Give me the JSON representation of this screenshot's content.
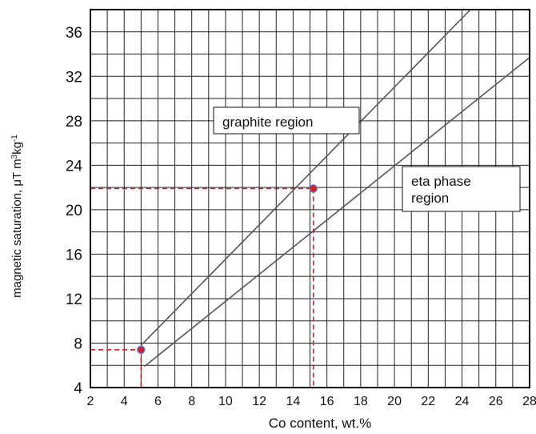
{
  "chart_data": {
    "type": "line",
    "xlabel": "Co content, wt.%",
    "ylabel_main": "magnetic saturation, μT m",
    "ylabel_sup1": "3",
    "ylabel_mid": "kg",
    "ylabel_sup2": "-1",
    "xlim": [
      2,
      28
    ],
    "ylim": [
      4,
      38
    ],
    "x_ticks": [
      "2",
      "4",
      "6",
      "8",
      "10",
      "12",
      "14",
      "16",
      "18",
      "20",
      "22",
      "24",
      "26",
      "28"
    ],
    "y_ticks": [
      "4",
      "8",
      "12",
      "16",
      "20",
      "24",
      "28",
      "32",
      "36"
    ],
    "grid": true,
    "series": [
      {
        "x": [
          5,
          24.5
        ],
        "y": [
          7.8,
          38
        ],
        "color": "#555555"
      },
      {
        "x": [
          5.2,
          28
        ],
        "y": [
          5.9,
          33.7
        ],
        "color": "#555555"
      }
    ],
    "annotations": [
      {
        "text": "graphite region"
      },
      {
        "text": "eta phase\nregion"
      }
    ],
    "markers": [
      {
        "x": 5,
        "y": 7.4,
        "color": "#d21f2a"
      },
      {
        "x": 15.2,
        "y": 21.9,
        "color": "#d21f2a"
      }
    ]
  }
}
